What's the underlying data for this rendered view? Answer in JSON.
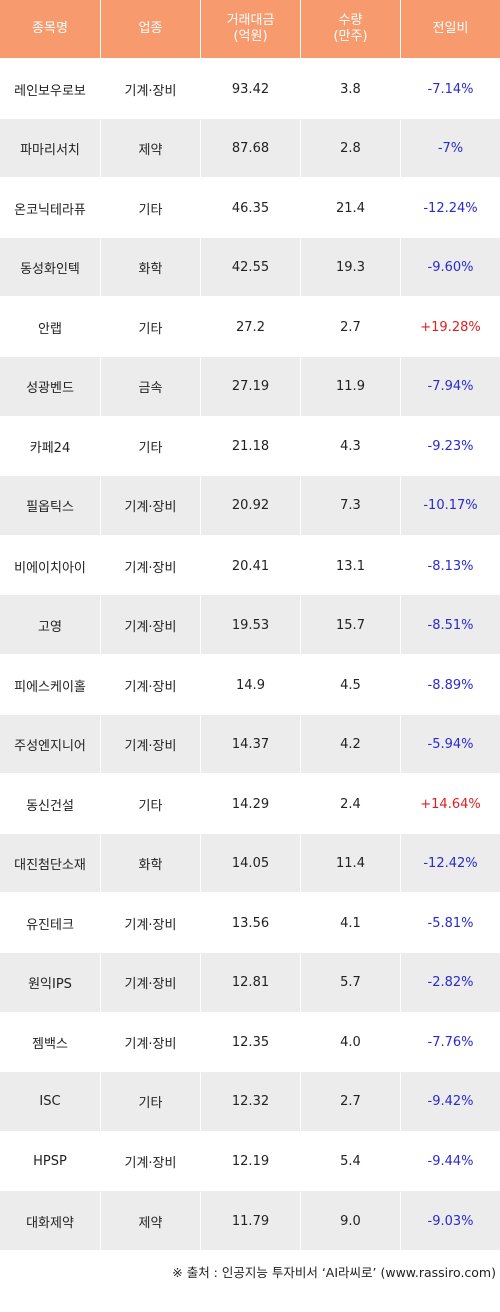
{
  "header": {
    "name": "종목명",
    "sector": "업종",
    "amount_line1": "거래대금",
    "amount_line2": "(억원)",
    "volume_line1": "수량",
    "volume_line2": "(만주)",
    "change": "전일비"
  },
  "colors": {
    "header_bg": "#f79a6e",
    "row_alt_bg": "#ececec",
    "negative": "#2a2ad0",
    "positive": "#e02020"
  },
  "rows": [
    {
      "name": "레인보우로보",
      "sector": "기계·장비",
      "amount": "93.42",
      "volume": "3.8",
      "change": "-7.14%",
      "dir": "neg"
    },
    {
      "name": "파마리서치",
      "sector": "제약",
      "amount": "87.68",
      "volume": "2.8",
      "change": "-7%",
      "dir": "neg"
    },
    {
      "name": "온코닉테라퓨",
      "sector": "기타",
      "amount": "46.35",
      "volume": "21.4",
      "change": "-12.24%",
      "dir": "neg"
    },
    {
      "name": "동성화인텍",
      "sector": "화학",
      "amount": "42.55",
      "volume": "19.3",
      "change": "-9.60%",
      "dir": "neg"
    },
    {
      "name": "안랩",
      "sector": "기타",
      "amount": "27.2",
      "volume": "2.7",
      "change": "+19.28%",
      "dir": "pos"
    },
    {
      "name": "성광벤드",
      "sector": "금속",
      "amount": "27.19",
      "volume": "11.9",
      "change": "-7.94%",
      "dir": "neg"
    },
    {
      "name": "카페24",
      "sector": "기타",
      "amount": "21.18",
      "volume": "4.3",
      "change": "-9.23%",
      "dir": "neg"
    },
    {
      "name": "필옵틱스",
      "sector": "기계·장비",
      "amount": "20.92",
      "volume": "7.3",
      "change": "-10.17%",
      "dir": "neg"
    },
    {
      "name": "비에이치아이",
      "sector": "기계·장비",
      "amount": "20.41",
      "volume": "13.1",
      "change": "-8.13%",
      "dir": "neg"
    },
    {
      "name": "고영",
      "sector": "기계·장비",
      "amount": "19.53",
      "volume": "15.7",
      "change": "-8.51%",
      "dir": "neg"
    },
    {
      "name": "피에스케이홀",
      "sector": "기계·장비",
      "amount": "14.9",
      "volume": "4.5",
      "change": "-8.89%",
      "dir": "neg"
    },
    {
      "name": "주성엔지니어",
      "sector": "기계·장비",
      "amount": "14.37",
      "volume": "4.2",
      "change": "-5.94%",
      "dir": "neg"
    },
    {
      "name": "동신건설",
      "sector": "기타",
      "amount": "14.29",
      "volume": "2.4",
      "change": "+14.64%",
      "dir": "pos"
    },
    {
      "name": "대진첨단소재",
      "sector": "화학",
      "amount": "14.05",
      "volume": "11.4",
      "change": "-12.42%",
      "dir": "neg"
    },
    {
      "name": "유진테크",
      "sector": "기계·장비",
      "amount": "13.56",
      "volume": "4.1",
      "change": "-5.81%",
      "dir": "neg"
    },
    {
      "name": "원익IPS",
      "sector": "기계·장비",
      "amount": "12.81",
      "volume": "5.7",
      "change": "-2.82%",
      "dir": "neg"
    },
    {
      "name": "젬백스",
      "sector": "기계·장비",
      "amount": "12.35",
      "volume": "4.0",
      "change": "-7.76%",
      "dir": "neg"
    },
    {
      "name": "ISC",
      "sector": "기타",
      "amount": "12.32",
      "volume": "2.7",
      "change": "-9.42%",
      "dir": "neg"
    },
    {
      "name": "HPSP",
      "sector": "기계·장비",
      "amount": "12.19",
      "volume": "5.4",
      "change": "-9.44%",
      "dir": "neg"
    },
    {
      "name": "대화제약",
      "sector": "제약",
      "amount": "11.79",
      "volume": "9.0",
      "change": "-9.03%",
      "dir": "neg"
    }
  ],
  "footer": {
    "source": "※ 출처 : 인공지능 투자비서 ‘AI라씨로’ (www.rassiro.com)"
  }
}
